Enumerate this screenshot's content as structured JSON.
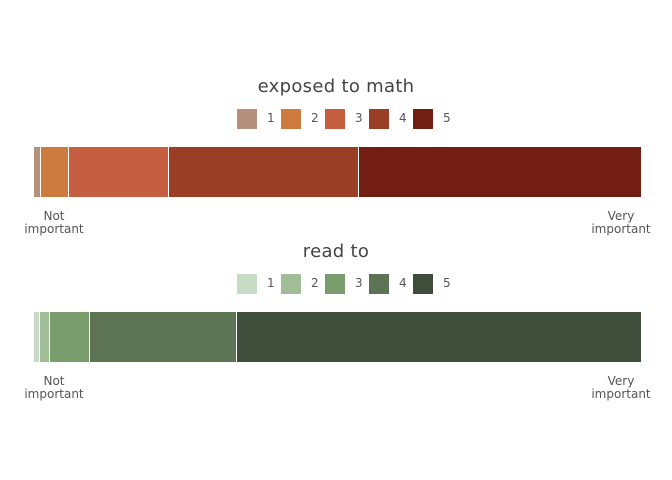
{
  "chart_data": [
    {
      "type": "bar",
      "orientation": "horizontal-stacked-100",
      "title": "exposed to math",
      "categories": [
        "1",
        "2",
        "3",
        "4",
        "5"
      ],
      "values": [
        1,
        4.6,
        16.5,
        31.3,
        46.6
      ],
      "colors": [
        "#b5907a",
        "#cd7b3f",
        "#c55e40",
        "#9a3e26",
        "#731e13"
      ],
      "axis_labels": {
        "left": "Not\nimportant",
        "right": "Very\nimportant"
      },
      "legend_position": "top"
    },
    {
      "type": "bar",
      "orientation": "horizontal-stacked-100",
      "title": "read to",
      "categories": [
        "1",
        "2",
        "3",
        "4",
        "5"
      ],
      "values": [
        0.8,
        1.7,
        6.6,
        24.2,
        66.7
      ],
      "colors": [
        "#c7dcc5",
        "#a0bd98",
        "#7a9d6d",
        "#5c7453",
        "#3f4e3b"
      ],
      "axis_labels": {
        "left": "Not\nimportant",
        "right": "Very\nimportant"
      },
      "legend_position": "top"
    }
  ]
}
